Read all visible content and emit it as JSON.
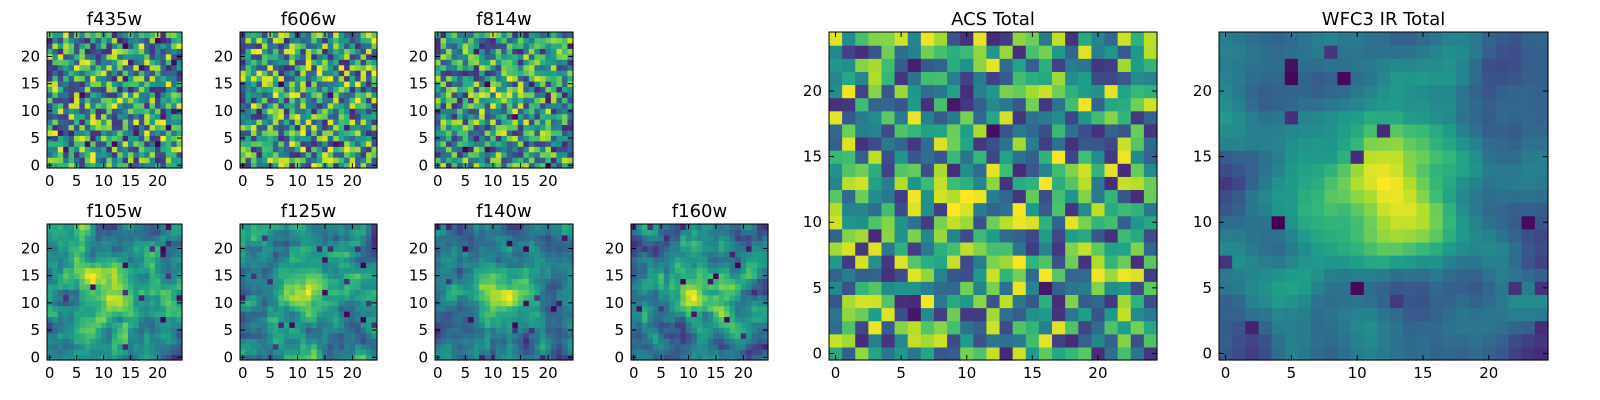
{
  "figure": {
    "panels": [
      {
        "title": "f435w",
        "xticks": [
          "0",
          "5",
          "10",
          "15",
          "20"
        ],
        "yticks": [
          "0",
          "5",
          "10",
          "15",
          "20"
        ],
        "seed": 11,
        "smooth": 0,
        "blob": 0
      },
      {
        "title": "f606w",
        "xticks": [
          "0",
          "5",
          "10",
          "15",
          "20"
        ],
        "yticks": [
          "0",
          "5",
          "10",
          "15",
          "20"
        ],
        "seed": 23,
        "smooth": 0,
        "blob": 0
      },
      {
        "title": "f814w",
        "xticks": [
          "0",
          "5",
          "10",
          "15",
          "20"
        ],
        "yticks": [
          "0",
          "5",
          "10",
          "15",
          "20"
        ],
        "seed": 37,
        "smooth": 0,
        "blob": 0.15
      },
      {
        "title": "f105w",
        "xticks": [
          "0",
          "5",
          "10",
          "15",
          "20"
        ],
        "yticks": [
          "0",
          "5",
          "10",
          "15",
          "20"
        ],
        "seed": 41,
        "smooth": 1,
        "blob": 0.35
      },
      {
        "title": "f125w",
        "xticks": [
          "0",
          "5",
          "10",
          "15",
          "20"
        ],
        "yticks": [
          "0",
          "5",
          "10",
          "15",
          "20"
        ],
        "seed": 53,
        "smooth": 1,
        "blob": 0.3
      },
      {
        "title": "f140w",
        "xticks": [
          "0",
          "5",
          "10",
          "15",
          "20"
        ],
        "yticks": [
          "0",
          "5",
          "10",
          "15",
          "20"
        ],
        "seed": 67,
        "smooth": 1,
        "blob": 0.45
      },
      {
        "title": "f160w",
        "xticks": [
          "0",
          "5",
          "10",
          "15",
          "20"
        ],
        "yticks": [
          "0",
          "5",
          "10",
          "15",
          "20"
        ],
        "seed": 79,
        "smooth": 1,
        "blob": 0.4
      },
      {
        "title": "ACS Total",
        "xticks": [
          "0",
          "5",
          "10",
          "15",
          "20"
        ],
        "yticks": [
          "0",
          "5",
          "10",
          "15",
          "20"
        ],
        "seed": 97,
        "smooth": 0,
        "blob": 0.1
      },
      {
        "title": "WFC3 IR Total",
        "xticks": [
          "0",
          "5",
          "10",
          "15",
          "20"
        ],
        "yticks": [
          "0",
          "5",
          "10",
          "15",
          "20"
        ],
        "seed": 131,
        "smooth": 2,
        "blob": 0.6
      }
    ]
  },
  "chart_data": [
    {
      "type": "heatmap",
      "title": "f435w",
      "x_range": [
        0,
        24
      ],
      "y_range": [
        0,
        24
      ],
      "grid_size": 24,
      "colormap": "viridis"
    },
    {
      "type": "heatmap",
      "title": "f606w",
      "x_range": [
        0,
        24
      ],
      "y_range": [
        0,
        24
      ],
      "grid_size": 24,
      "colormap": "viridis"
    },
    {
      "type": "heatmap",
      "title": "f814w",
      "x_range": [
        0,
        24
      ],
      "y_range": [
        0,
        24
      ],
      "grid_size": 24,
      "colormap": "viridis"
    },
    {
      "type": "heatmap",
      "title": "f105w",
      "x_range": [
        0,
        24
      ],
      "y_range": [
        0,
        24
      ],
      "grid_size": 24,
      "colormap": "viridis"
    },
    {
      "type": "heatmap",
      "title": "f125w",
      "x_range": [
        0,
        24
      ],
      "y_range": [
        0,
        24
      ],
      "grid_size": 24,
      "colormap": "viridis"
    },
    {
      "type": "heatmap",
      "title": "f140w",
      "x_range": [
        0,
        24
      ],
      "y_range": [
        0,
        24
      ],
      "grid_size": 24,
      "colormap": "viridis"
    },
    {
      "type": "heatmap",
      "title": "f160w",
      "x_range": [
        0,
        24
      ],
      "y_range": [
        0,
        24
      ],
      "grid_size": 24,
      "colormap": "viridis"
    },
    {
      "type": "heatmap",
      "title": "ACS Total",
      "x_range": [
        0,
        24
      ],
      "y_range": [
        0,
        24
      ],
      "grid_size": 24,
      "colormap": "viridis"
    },
    {
      "type": "heatmap",
      "title": "WFC3 IR Total",
      "x_range": [
        0,
        24
      ],
      "y_range": [
        0,
        24
      ],
      "grid_size": 24,
      "colormap": "viridis"
    }
  ]
}
